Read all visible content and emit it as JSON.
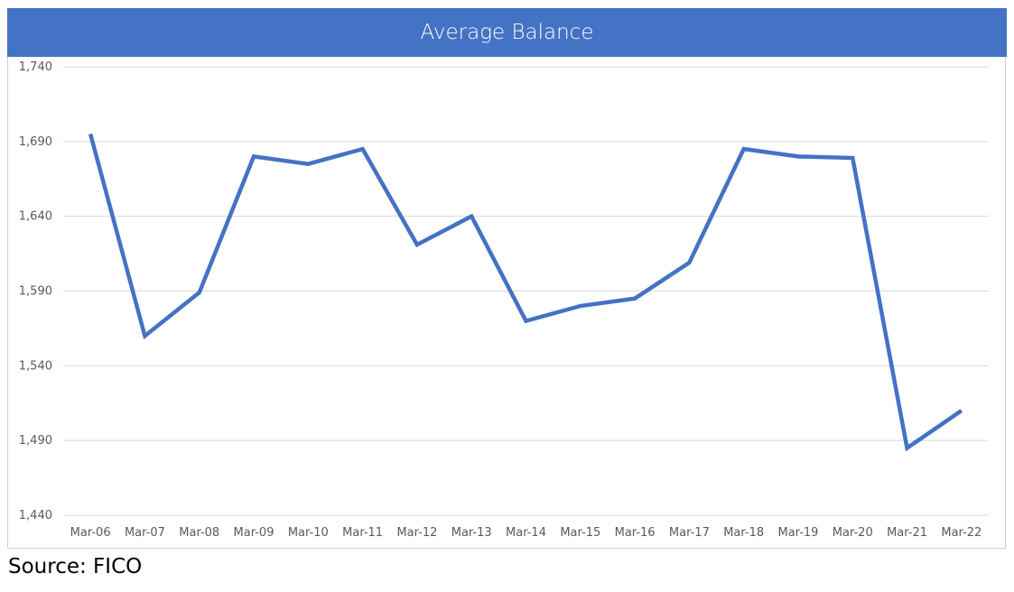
{
  "chart_data": {
    "type": "line",
    "title": "Average Balance",
    "categories": [
      "Mar-06",
      "Mar-07",
      "Mar-08",
      "Mar-09",
      "Mar-10",
      "Mar-11",
      "Mar-12",
      "Mar-13",
      "Mar-14",
      "Mar-15",
      "Mar-16",
      "Mar-17",
      "Mar-18",
      "Mar-19",
      "Mar-20",
      "Mar-21",
      "Mar-22"
    ],
    "series": [
      {
        "values": [
          1695,
          1560,
          1589,
          1680,
          1675,
          1685,
          1621,
          1640,
          1570,
          1580,
          1585,
          1609,
          1685,
          1680,
          1679,
          1485,
          1510
        ]
      }
    ],
    "ylim": [
      1440,
      1740
    ],
    "yticks": [
      1440,
      1490,
      1540,
      1590,
      1640,
      1690,
      1740
    ],
    "ytick_labels": [
      "1,440",
      "1,490",
      "1,540",
      "1,590",
      "1,640",
      "1,690",
      "1,740"
    ],
    "grid": true,
    "legend": "none",
    "line_color": "#4472c4",
    "title_bar_color": "#4472c4"
  },
  "source": "Source: FICO"
}
